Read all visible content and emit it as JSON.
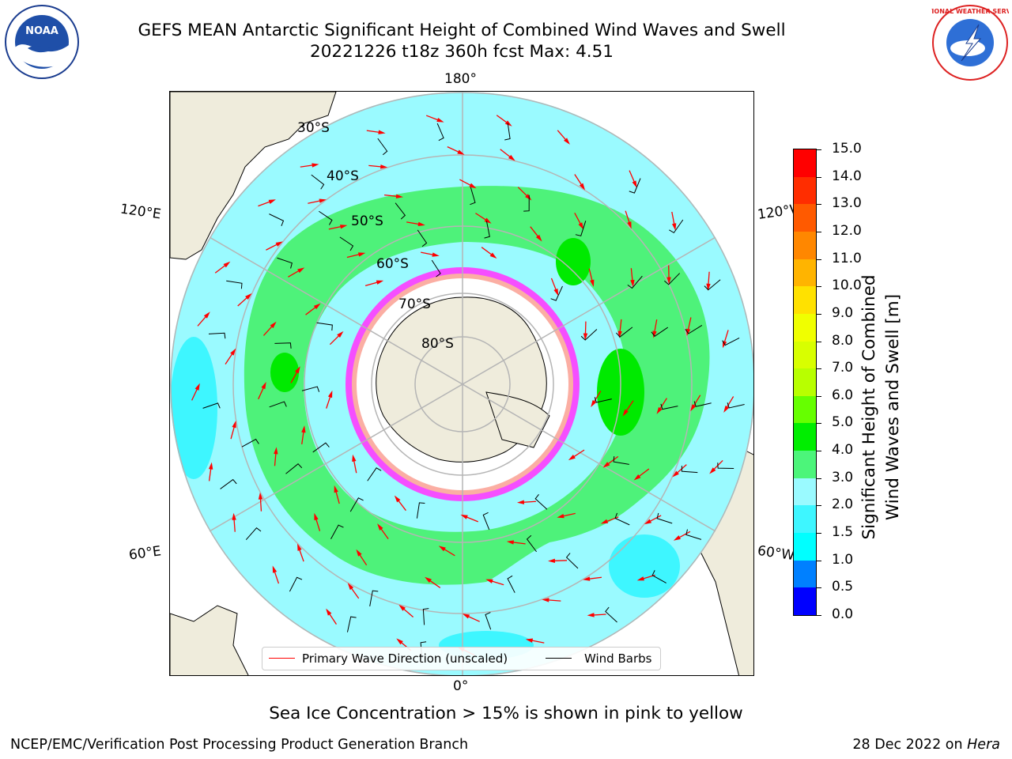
{
  "header": {
    "title_line1": "GEFS MEAN Antarctic Significant Height of Combined Wind Waves and Swell",
    "title_line2": "20221226 t18z 360h fcst   Max: 4.51"
  },
  "logos": {
    "left": {
      "name": "noaa-logo",
      "text": "NOAA"
    },
    "right": {
      "name": "nws-logo",
      "text": "NATIONAL WEATHER SERVICE"
    }
  },
  "map": {
    "lon_labels": [
      "180°",
      "120°E",
      "120°W",
      "60°E",
      "60°W",
      "0°"
    ],
    "lat_labels": [
      "30°S",
      "40°S",
      "50°S",
      "60°S",
      "70°S",
      "80°S"
    ],
    "colors": {
      "land": "#efecdc",
      "ocean_2_3": "#9afaff",
      "ocean_3_4": "#4ef27a",
      "ocean_4_5": "#00ea00",
      "ocean_1_5_2": "#3ef6ff",
      "gridline": "#b5b5b5",
      "ice_pink": "#ff3bff",
      "ice_yellow": "#ffee66",
      "wave_arrow": "#ff0000",
      "wind_barb": "#000000"
    }
  },
  "legend": {
    "wave_label": "Primary Wave Direction (unscaled)",
    "barb_label": "Wind Barbs"
  },
  "colorbar": {
    "label_line1": "Significant Height of Combined",
    "label_line2": "Wind Waves and Swell [m]",
    "ticks": [
      "15.0",
      "14.0",
      "13.0",
      "12.0",
      "11.0",
      "10.0",
      "9.0",
      "8.0",
      "7.0",
      "6.0",
      "5.0",
      "4.0",
      "3.0",
      "2.0",
      "1.5",
      "1.0",
      "0.5",
      "0.0"
    ],
    "colors": [
      "#ff0000",
      "#ff2d00",
      "#ff5a00",
      "#ff8700",
      "#ffb400",
      "#ffe100",
      "#f0ff00",
      "#d8ff00",
      "#b8ff00",
      "#66ff00",
      "#00ee00",
      "#4cf57a",
      "#9afaff",
      "#3ef6ff",
      "#00ffff",
      "#0080ff",
      "#0000ff"
    ]
  },
  "footer": {
    "note": "Sea Ice Concentration > 15% is shown in pink to yellow",
    "credit_left": "NCEP/EMC/Verification Post Processing Product Generation Branch",
    "credit_date": "28 Dec 2022 on",
    "credit_host": "Hera"
  }
}
